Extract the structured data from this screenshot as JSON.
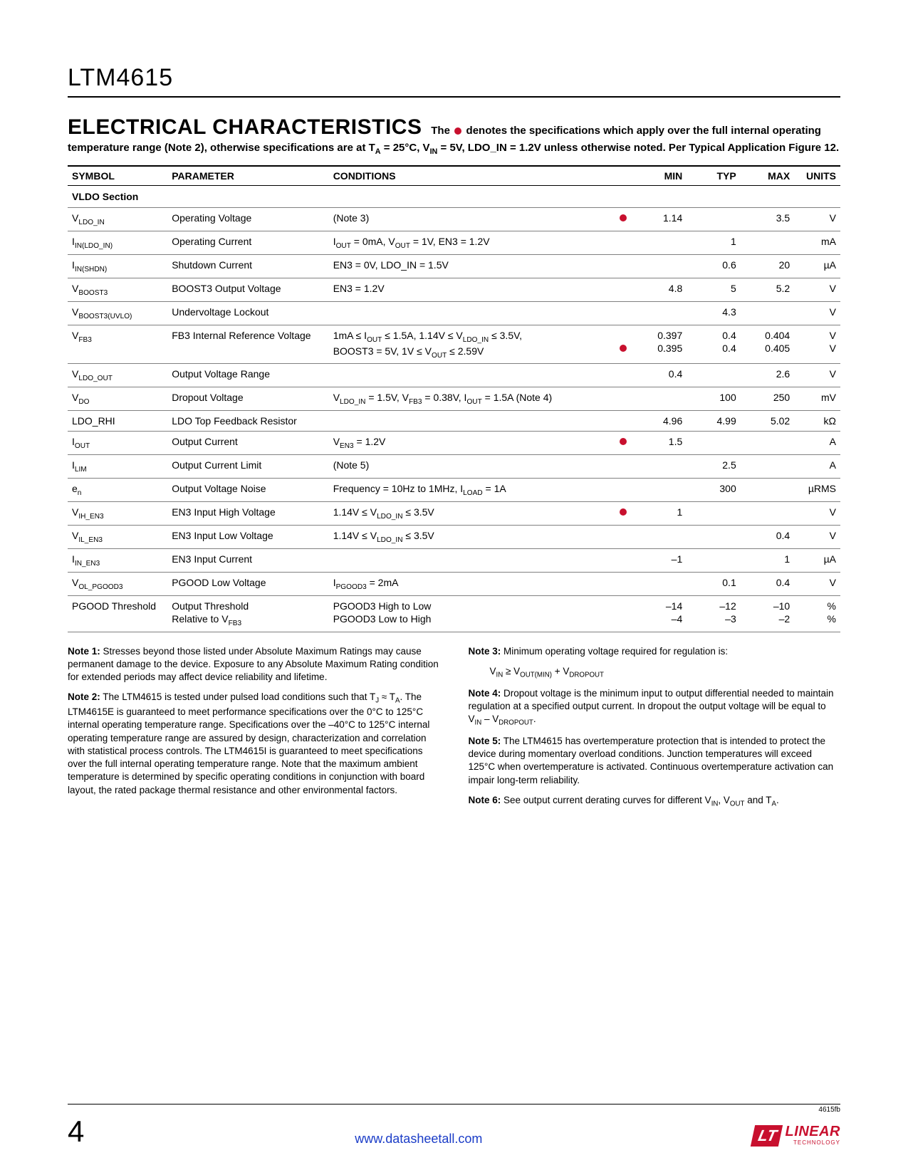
{
  "partNumber": "LTM4615",
  "sectionTitle": "ELECTRICAL CHARACTERISTICS",
  "sectionSub": "The ● denotes the specifications which apply over the full internal operating temperature range (Note 2), otherwise specifications are at Tᴀ = 25°C, Vₗₙ = 5V, LDO_IN = 1.2V unless otherwise noted. Per Typical Application Figure 12.",
  "headers": {
    "symbol": "SYMBOL",
    "parameter": "PARAMETER",
    "conditions": "CONDITIONS",
    "min": "MIN",
    "typ": "TYP",
    "max": "MAX",
    "units": "UNITS"
  },
  "sectionRow": "VLDO Section",
  "rows": [
    {
      "symbol": "V<sub>LDO_IN</sub>",
      "parameter": "Operating Voltage",
      "conditions": "(Note 3)",
      "dot": true,
      "min": "1.14",
      "typ": "",
      "max": "3.5",
      "units": "V"
    },
    {
      "symbol": "I<sub>IN(LDO_IN)</sub>",
      "parameter": "Operating Current",
      "conditions": "I<sub>OUT</sub> = 0mA, V<sub>OUT</sub> = 1V, EN3 = 1.2V",
      "dot": false,
      "min": "",
      "typ": "1",
      "max": "",
      "units": "mA"
    },
    {
      "symbol": "I<sub>IN(SHDN)</sub>",
      "parameter": "Shutdown Current",
      "conditions": "EN3 = 0V, LDO_IN = 1.5V",
      "dot": false,
      "min": "",
      "typ": "0.6",
      "max": "20",
      "units": "µA"
    },
    {
      "symbol": "V<sub>BOOST3</sub>",
      "parameter": "BOOST3 Output Voltage",
      "conditions": "EN3 = 1.2V",
      "dot": false,
      "min": "4.8",
      "typ": "5",
      "max": "5.2",
      "units": "V"
    },
    {
      "symbol": "V<sub>BOOST3(UVLO)</sub>",
      "parameter": "Undervoltage Lockout",
      "conditions": "",
      "dot": false,
      "min": "",
      "typ": "4.3",
      "max": "",
      "units": "V"
    },
    {
      "symbol": "V<sub>FB3</sub>",
      "parameter": "FB3 Internal Reference Voltage",
      "conditions": "1mA ≤ I<sub>OUT</sub> ≤ 1.5A, 1.14V ≤ V<sub>LDO_IN</sub> ≤ 3.5V,\nBOOST3 = 5V, 1V ≤ V<sub>OUT</sub> ≤ 2.59V",
      "dot": true,
      "dotPos": "bottom",
      "min": "0.397\n0.395",
      "typ": "0.4\n0.4",
      "max": "0.404\n0.405",
      "units": "V\nV"
    },
    {
      "symbol": "V<sub>LDO_OUT</sub>",
      "parameter": "Output Voltage Range",
      "conditions": "",
      "dot": false,
      "min": "0.4",
      "typ": "",
      "max": "2.6",
      "units": "V"
    },
    {
      "symbol": "V<sub>DO</sub>",
      "parameter": "Dropout Voltage",
      "conditions": "V<sub>LDO_IN</sub> = 1.5V, V<sub>FB3</sub> = 0.38V, I<sub>OUT</sub> = 1.5A (Note 4)",
      "dot": false,
      "min": "",
      "typ": "100",
      "max": "250",
      "units": "mV"
    },
    {
      "symbol": "LDO_RHI",
      "parameter": "LDO Top Feedback Resistor",
      "conditions": "",
      "dot": false,
      "min": "4.96",
      "typ": "4.99",
      "max": "5.02",
      "units": "kΩ"
    },
    {
      "symbol": "I<sub>OUT</sub>",
      "parameter": "Output Current",
      "conditions": "V<sub>EN3</sub> = 1.2V",
      "dot": true,
      "min": "1.5",
      "typ": "",
      "max": "",
      "units": "A"
    },
    {
      "symbol": "I<sub>LIM</sub>",
      "parameter": "Output Current Limit",
      "conditions": "(Note 5)",
      "dot": false,
      "min": "",
      "typ": "2.5",
      "max": "",
      "units": "A"
    },
    {
      "symbol": "e<sub>n</sub>",
      "parameter": "Output Voltage Noise",
      "conditions": "Frequency = 10Hz to 1MHz, I<sub>LOAD</sub> = 1A",
      "dot": false,
      "min": "",
      "typ": "300",
      "max": "",
      "units": "µRMS"
    },
    {
      "symbol": "V<sub>IH_EN3</sub>",
      "parameter": "EN3 Input High Voltage",
      "conditions": "1.14V ≤ V<sub>LDO_IN</sub> ≤ 3.5V",
      "dot": true,
      "min": "1",
      "typ": "",
      "max": "",
      "units": "V"
    },
    {
      "symbol": "V<sub>IL_EN3</sub>",
      "parameter": "EN3 Input Low Voltage",
      "conditions": "1.14V ≤ V<sub>LDO_IN</sub> ≤ 3.5V",
      "dot": false,
      "min": "",
      "typ": "",
      "max": "0.4",
      "units": "V"
    },
    {
      "symbol": "I<sub>IN_EN3</sub>",
      "parameter": "EN3 Input Current",
      "conditions": "",
      "dot": false,
      "min": "–1",
      "typ": "",
      "max": "1",
      "units": "µA"
    },
    {
      "symbol": "V<sub>OL_PGOOD3</sub>",
      "parameter": "PGOOD Low Voltage",
      "conditions": "I<sub>PGOOD3</sub> = 2mA",
      "dot": false,
      "min": "",
      "typ": "0.1",
      "max": "0.4",
      "units": "V"
    },
    {
      "symbol": "PGOOD Threshold",
      "parameter": "Output Threshold\nRelative to V<sub>FB3</sub>",
      "conditions": "PGOOD3 High to Low\nPGOOD3 Low to High",
      "dot": false,
      "min": "–14\n–4",
      "typ": "–12\n–3",
      "max": "–10\n–2",
      "units": "%\n%"
    }
  ],
  "notesLeft": [
    "<b>Note 1:</b> Stresses beyond those listed under Absolute Maximum Ratings may cause permanent damage to the device. Exposure to any Absolute Maximum Rating condition for extended periods may affect device reliability and lifetime.",
    "<b>Note 2:</b> The LTM4615 is tested under pulsed load conditions such that T<sub>J</sub> ≈ T<sub>A</sub>. The LTM4615E is guaranteed to meet performance specifications over the 0°C to 125°C internal operating temperature range. Specifications over the –40°C to 125°C internal operating temperature range are assured by design, characterization and correlation with statistical process controls. The LTM4615I is guaranteed to meet specifications over the full internal operating temperature range. Note that the maximum ambient temperature is determined by specific operating conditions in conjunction with board layout, the rated package thermal resistance and other environmental factors."
  ],
  "notesRight": [
    "<b>Note 3:</b> Minimum operating voltage required for regulation is:",
    "V<sub>IN</sub> ≥ V<sub>OUT(MIN)</sub> + V<sub>DROPOUT</sub>",
    "<b>Note 4:</b> Dropout voltage is the minimum input to output differential needed to maintain regulation at a specified output current. In dropout the output voltage will be equal to V<sub>IN</sub> – V<sub>DROPOUT</sub>.",
    "<b>Note 5:</b> The LTM4615 has overtemperature protection that is intended to protect the device during momentary overload conditions. Junction temperatures will exceed 125°C when overtemperature is activated. Continuous overtemperature activation can impair long-term reliability.",
    "<b>Note 6:</b> See output current derating curves for different V<sub>IN</sub>, V<sub>OUT</sub> and T<sub>A</sub>."
  ],
  "footer": {
    "docCode": "4615fb",
    "pageNumber": "4",
    "url": "www.datasheetall.com",
    "logoGlyph": "LT",
    "logoText": "LINEAR",
    "logoSub": "TECHNOLOGY"
  },
  "colors": {
    "brandRed": "#c8102e",
    "link": "#1a3cc7",
    "rule": "#808080"
  }
}
